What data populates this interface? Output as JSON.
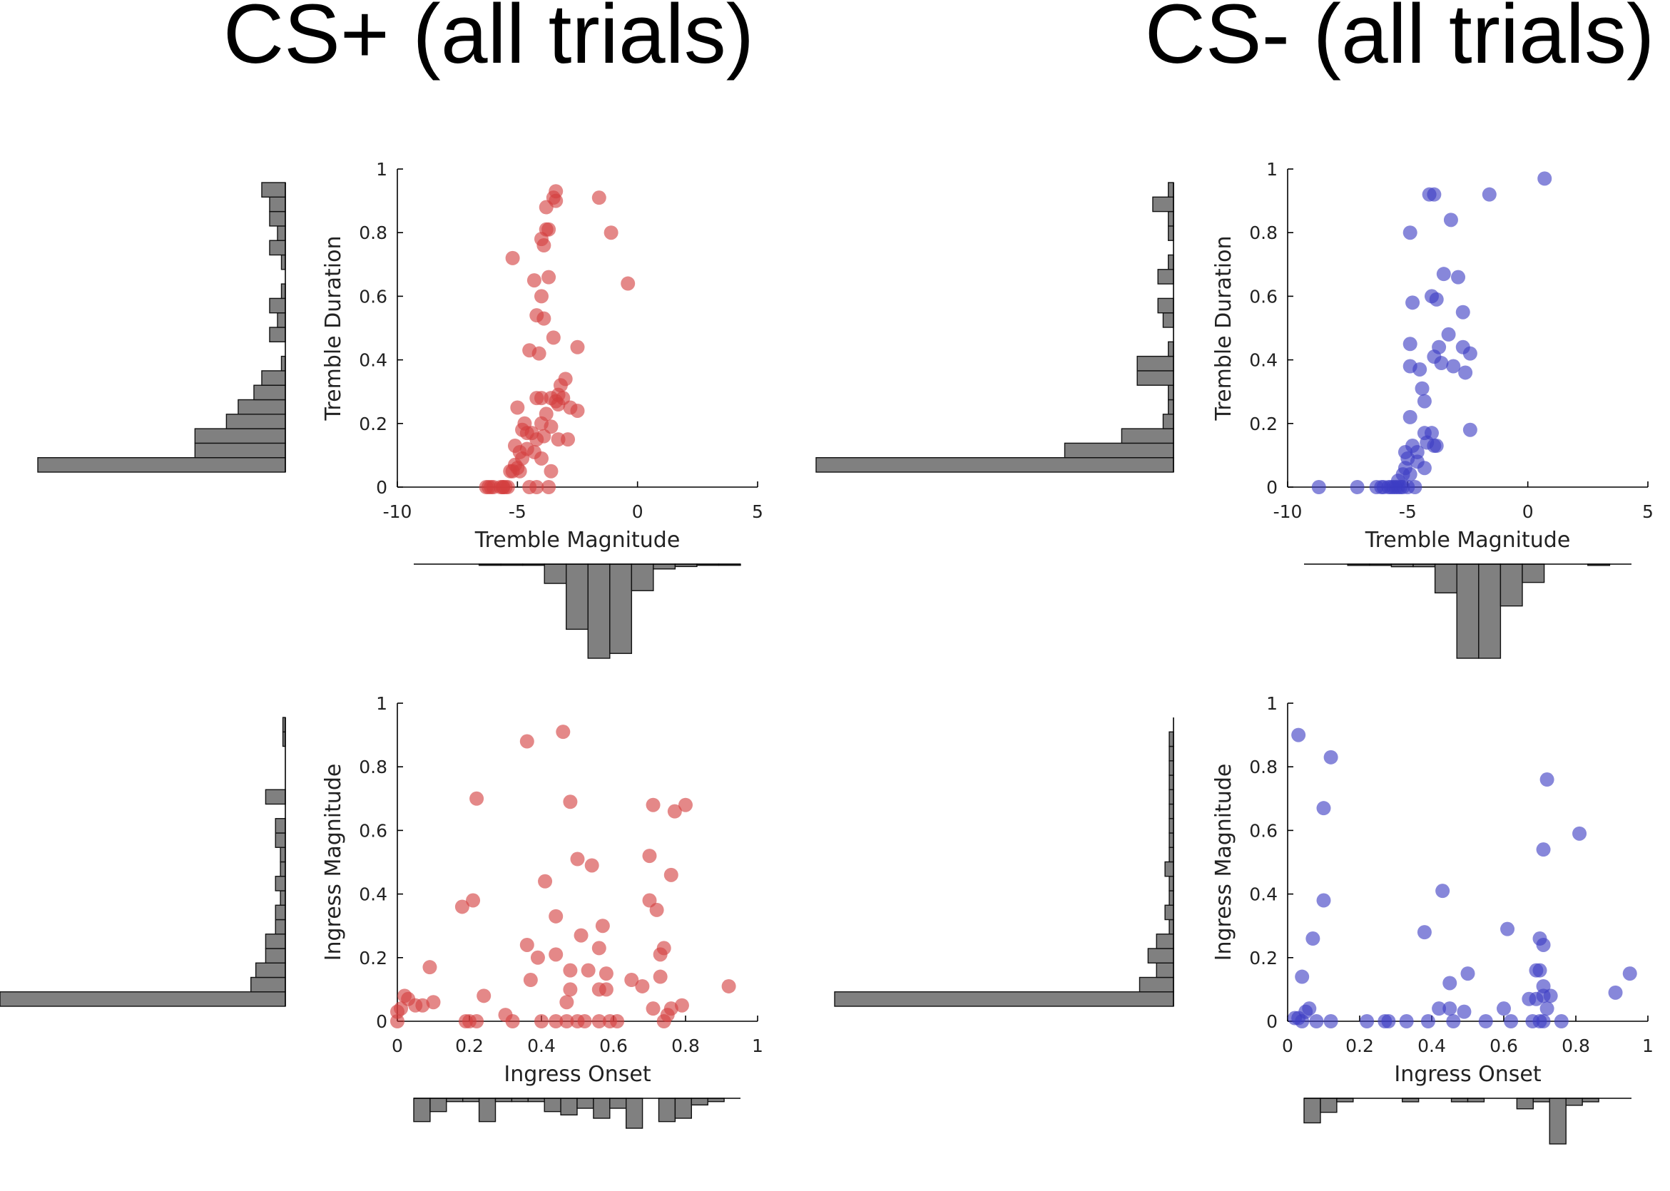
{
  "titles": {
    "left": "CS+ (all trials)",
    "right": "CS- (all trials)"
  },
  "chart_data": [
    {
      "id": "csplus-tremble",
      "type": "scatter",
      "xlabel": "Tremble Magnitude",
      "ylabel": "Tremble Duration",
      "xlim": [
        -10,
        5
      ],
      "ylim": [
        0,
        1
      ],
      "xticks": [
        -10,
        -5,
        0,
        5
      ],
      "yticks": [
        0,
        0.2,
        0.4,
        0.6,
        0.8,
        1
      ],
      "color": "#d43f3f",
      "points": [
        [
          -3.4,
          0.93
        ],
        [
          -3.5,
          0.91
        ],
        [
          -3.4,
          0.9
        ],
        [
          -1.6,
          0.91
        ],
        [
          -1.1,
          0.8
        ],
        [
          -3.8,
          0.88
        ],
        [
          -3.8,
          0.81
        ],
        [
          -3.7,
          0.81
        ],
        [
          -4.0,
          0.78
        ],
        [
          -3.9,
          0.76
        ],
        [
          -5.2,
          0.72
        ],
        [
          -0.4,
          0.64
        ],
        [
          -4.3,
          0.65
        ],
        [
          -3.7,
          0.66
        ],
        [
          -4.0,
          0.6
        ],
        [
          -4.2,
          0.54
        ],
        [
          -3.9,
          0.53
        ],
        [
          -3.5,
          0.47
        ],
        [
          -4.5,
          0.43
        ],
        [
          -4.1,
          0.42
        ],
        [
          -2.5,
          0.44
        ],
        [
          -3.0,
          0.34
        ],
        [
          -3.2,
          0.32
        ],
        [
          -3.3,
          0.29
        ],
        [
          -3.4,
          0.27
        ],
        [
          -3.1,
          0.28
        ],
        [
          -4.2,
          0.28
        ],
        [
          -4.0,
          0.28
        ],
        [
          -3.6,
          0.28
        ],
        [
          -5.0,
          0.25
        ],
        [
          -2.5,
          0.24
        ],
        [
          -2.8,
          0.25
        ],
        [
          -3.3,
          0.26
        ],
        [
          -3.8,
          0.23
        ],
        [
          -4.7,
          0.2
        ],
        [
          -4.0,
          0.2
        ],
        [
          -4.4,
          0.17
        ],
        [
          -4.6,
          0.17
        ],
        [
          -4.8,
          0.18
        ],
        [
          -3.6,
          0.19
        ],
        [
          -3.3,
          0.15
        ],
        [
          -2.9,
          0.15
        ],
        [
          -3.9,
          0.16
        ],
        [
          -4.2,
          0.15
        ],
        [
          -4.6,
          0.12
        ],
        [
          -4.3,
          0.11
        ],
        [
          -4.9,
          0.11
        ],
        [
          -5.1,
          0.13
        ],
        [
          -4.8,
          0.09
        ],
        [
          -5.1,
          0.07
        ],
        [
          -5.0,
          0.06
        ],
        [
          -5.3,
          0.05
        ],
        [
          -5.2,
          0.05
        ],
        [
          -4.9,
          0.05
        ],
        [
          -3.6,
          0.05
        ],
        [
          -4.0,
          0.09
        ],
        [
          -5.6,
          0.0
        ],
        [
          -5.5,
          0.0
        ],
        [
          -5.7,
          0.0
        ],
        [
          -6.2,
          0.0
        ],
        [
          -6.0,
          0.0
        ],
        [
          -6.3,
          0.0
        ],
        [
          -6.1,
          0.0
        ],
        [
          -4.5,
          0.0
        ],
        [
          -3.7,
          0.0
        ],
        [
          -4.2,
          0.0
        ],
        [
          -5.6,
          0.0
        ],
        [
          -5.4,
          0.0
        ]
      ]
    },
    {
      "id": "csminus-tremble",
      "type": "scatter",
      "xlabel": "Tremble Magnitude",
      "ylabel": "Tremble Duration",
      "xlim": [
        -10,
        5
      ],
      "ylim": [
        0,
        1
      ],
      "xticks": [
        -10,
        -5,
        0,
        5
      ],
      "yticks": [
        0,
        0.2,
        0.4,
        0.6,
        0.8,
        1
      ],
      "color": "#3d3dc4",
      "points": [
        [
          0.7,
          0.97
        ],
        [
          -4.1,
          0.92
        ],
        [
          -3.9,
          0.92
        ],
        [
          -1.6,
          0.92
        ],
        [
          -3.2,
          0.84
        ],
        [
          -4.9,
          0.8
        ],
        [
          -3.5,
          0.67
        ],
        [
          -2.9,
          0.66
        ],
        [
          -4.0,
          0.6
        ],
        [
          -3.8,
          0.59
        ],
        [
          -4.8,
          0.58
        ],
        [
          -2.7,
          0.55
        ],
        [
          -3.3,
          0.48
        ],
        [
          -4.9,
          0.45
        ],
        [
          -3.7,
          0.44
        ],
        [
          -3.9,
          0.41
        ],
        [
          -2.7,
          0.44
        ],
        [
          -2.4,
          0.42
        ],
        [
          -4.5,
          0.37
        ],
        [
          -3.6,
          0.39
        ],
        [
          -3.1,
          0.38
        ],
        [
          -2.6,
          0.36
        ],
        [
          -4.9,
          0.38
        ],
        [
          -4.4,
          0.31
        ],
        [
          -4.3,
          0.27
        ],
        [
          -4.9,
          0.22
        ],
        [
          -2.4,
          0.18
        ],
        [
          -4.3,
          0.17
        ],
        [
          -4.0,
          0.17
        ],
        [
          -4.2,
          0.14
        ],
        [
          -3.9,
          0.13
        ],
        [
          -3.8,
          0.13
        ],
        [
          -4.8,
          0.13
        ],
        [
          -4.6,
          0.11
        ],
        [
          -5.1,
          0.11
        ],
        [
          -5.0,
          0.09
        ],
        [
          -4.6,
          0.08
        ],
        [
          -4.3,
          0.06
        ],
        [
          -5.1,
          0.06
        ],
        [
          -5.2,
          0.04
        ],
        [
          -4.9,
          0.04
        ],
        [
          -5.4,
          0.02
        ],
        [
          -8.7,
          0.0
        ],
        [
          -7.1,
          0.0
        ],
        [
          -6.3,
          0.0
        ],
        [
          -6.0,
          0.0
        ],
        [
          -5.8,
          0.0
        ],
        [
          -5.6,
          0.0
        ],
        [
          -5.5,
          0.0
        ],
        [
          -5.3,
          0.0
        ],
        [
          -5.2,
          0.0
        ],
        [
          -5.0,
          0.0
        ],
        [
          -4.7,
          0.0
        ],
        [
          -6.1,
          0.0
        ],
        [
          -5.7,
          0.0
        ],
        [
          -5.4,
          0.0
        ]
      ]
    },
    {
      "id": "csplus-ingress",
      "type": "scatter",
      "xlabel": "Ingress Onset",
      "ylabel": "Ingress Magnitude",
      "xlim": [
        0,
        1
      ],
      "ylim": [
        0,
        1
      ],
      "xticks": [
        0,
        0.2,
        0.4,
        0.6,
        0.8,
        1
      ],
      "yticks": [
        0,
        0.2,
        0.4,
        0.6,
        0.8,
        1
      ],
      "color": "#d43f3f",
      "points": [
        [
          0.46,
          0.91
        ],
        [
          0.36,
          0.88
        ],
        [
          0.22,
          0.7
        ],
        [
          0.48,
          0.69
        ],
        [
          0.8,
          0.68
        ],
        [
          0.71,
          0.68
        ],
        [
          0.77,
          0.66
        ],
        [
          0.5,
          0.51
        ],
        [
          0.7,
          0.52
        ],
        [
          0.54,
          0.49
        ],
        [
          0.76,
          0.46
        ],
        [
          0.41,
          0.44
        ],
        [
          0.7,
          0.38
        ],
        [
          0.21,
          0.38
        ],
        [
          0.18,
          0.36
        ],
        [
          0.72,
          0.35
        ],
        [
          0.44,
          0.33
        ],
        [
          0.57,
          0.3
        ],
        [
          0.51,
          0.27
        ],
        [
          0.36,
          0.24
        ],
        [
          0.56,
          0.23
        ],
        [
          0.74,
          0.23
        ],
        [
          0.73,
          0.21
        ],
        [
          0.44,
          0.21
        ],
        [
          0.39,
          0.2
        ],
        [
          0.53,
          0.16
        ],
        [
          0.48,
          0.16
        ],
        [
          0.09,
          0.17
        ],
        [
          0.58,
          0.15
        ],
        [
          0.37,
          0.13
        ],
        [
          0.65,
          0.13
        ],
        [
          0.73,
          0.14
        ],
        [
          0.68,
          0.11
        ],
        [
          0.92,
          0.11
        ],
        [
          0.48,
          0.1
        ],
        [
          0.56,
          0.1
        ],
        [
          0.58,
          0.1
        ],
        [
          0.24,
          0.08
        ],
        [
          0.02,
          0.08
        ],
        [
          0.03,
          0.07
        ],
        [
          0.1,
          0.06
        ],
        [
          0.05,
          0.05
        ],
        [
          0.07,
          0.05
        ],
        [
          0.47,
          0.06
        ],
        [
          0.79,
          0.05
        ],
        [
          0.76,
          0.04
        ],
        [
          0.71,
          0.04
        ],
        [
          0.01,
          0.04
        ],
        [
          0.0,
          0.03
        ],
        [
          0.3,
          0.02
        ],
        [
          0.75,
          0.02
        ],
        [
          0.0,
          0.0
        ],
        [
          0.2,
          0.0
        ],
        [
          0.22,
          0.0
        ],
        [
          0.19,
          0.0
        ],
        [
          0.32,
          0.0
        ],
        [
          0.4,
          0.0
        ],
        [
          0.44,
          0.0
        ],
        [
          0.47,
          0.0
        ],
        [
          0.5,
          0.0
        ],
        [
          0.52,
          0.0
        ],
        [
          0.56,
          0.0
        ],
        [
          0.59,
          0.0
        ],
        [
          0.61,
          0.0
        ],
        [
          0.74,
          0.0
        ]
      ]
    },
    {
      "id": "csminus-ingress",
      "type": "scatter",
      "xlabel": "Ingress Onset",
      "ylabel": "Ingress Magnitude",
      "xlim": [
        0,
        1
      ],
      "ylim": [
        0,
        1
      ],
      "xticks": [
        0,
        0.2,
        0.4,
        0.6,
        0.8,
        1
      ],
      "yticks": [
        0,
        0.2,
        0.4,
        0.6,
        0.8,
        1
      ],
      "color": "#3d3dc4",
      "points": [
        [
          0.03,
          0.9
        ],
        [
          0.12,
          0.83
        ],
        [
          0.72,
          0.76
        ],
        [
          0.1,
          0.67
        ],
        [
          0.81,
          0.59
        ],
        [
          0.71,
          0.54
        ],
        [
          0.43,
          0.41
        ],
        [
          0.1,
          0.38
        ],
        [
          0.38,
          0.28
        ],
        [
          0.61,
          0.29
        ],
        [
          0.07,
          0.26
        ],
        [
          0.7,
          0.26
        ],
        [
          0.71,
          0.24
        ],
        [
          0.5,
          0.15
        ],
        [
          0.95,
          0.15
        ],
        [
          0.04,
          0.14
        ],
        [
          0.69,
          0.16
        ],
        [
          0.7,
          0.16
        ],
        [
          0.45,
          0.12
        ],
        [
          0.71,
          0.11
        ],
        [
          0.91,
          0.09
        ],
        [
          0.73,
          0.08
        ],
        [
          0.71,
          0.08
        ],
        [
          0.69,
          0.07
        ],
        [
          0.67,
          0.07
        ],
        [
          0.42,
          0.04
        ],
        [
          0.45,
          0.04
        ],
        [
          0.49,
          0.03
        ],
        [
          0.6,
          0.04
        ],
        [
          0.72,
          0.04
        ],
        [
          0.06,
          0.04
        ],
        [
          0.05,
          0.03
        ],
        [
          0.02,
          0.01
        ],
        [
          0.03,
          0.01
        ],
        [
          0.04,
          0.0
        ],
        [
          0.08,
          0.0
        ],
        [
          0.12,
          0.0
        ],
        [
          0.22,
          0.0
        ],
        [
          0.27,
          0.0
        ],
        [
          0.28,
          0.0
        ],
        [
          0.33,
          0.0
        ],
        [
          0.39,
          0.0
        ],
        [
          0.46,
          0.0
        ],
        [
          0.55,
          0.0
        ],
        [
          0.62,
          0.0
        ],
        [
          0.7,
          0.0
        ],
        [
          0.76,
          0.0
        ],
        [
          0.68,
          0.0
        ],
        [
          0.71,
          0.0
        ]
      ]
    },
    {
      "id": "csplus-tremble-duration-hist",
      "type": "bar",
      "orientation": "horizontal",
      "bins": 20,
      "values": [
        63,
        23,
        23,
        15,
        12,
        8,
        6,
        1,
        0,
        4,
        2,
        4,
        1,
        0,
        1,
        4,
        2,
        4,
        4,
        6
      ]
    },
    {
      "id": "csplus-tremble-magnitude-hist",
      "type": "bar",
      "bins": 15,
      "values": [
        0,
        0,
        0,
        0.5,
        0.5,
        0.5,
        8,
        27,
        39,
        37,
        11,
        2,
        1,
        0.5,
        0.5
      ]
    },
    {
      "id": "csminus-tremble-duration-hist",
      "type": "bar",
      "orientation": "horizontal",
      "bins": 20,
      "values": [
        69,
        21,
        10,
        2,
        1,
        1,
        7,
        7,
        1,
        0,
        2,
        3,
        0,
        3,
        1,
        0,
        1,
        1,
        4,
        1
      ]
    },
    {
      "id": "csminus-tremble-magnitude-hist",
      "type": "bar",
      "bins": 15,
      "values": [
        0,
        0,
        0.5,
        0.5,
        1,
        1,
        11,
        36,
        36,
        16,
        7,
        0,
        0,
        0.5,
        0
      ]
    },
    {
      "id": "csplus-ingress-magnitude-hist",
      "type": "bar",
      "orientation": "horizontal",
      "bins": 20,
      "values": [
        58,
        7,
        6,
        4,
        4,
        2,
        2,
        1,
        2,
        1,
        1,
        2,
        2,
        0,
        4,
        0,
        0,
        0,
        0.5,
        0.5
      ]
    },
    {
      "id": "csplus-ingress-onset-hist",
      "type": "bar",
      "bins": 20,
      "values": [
        7,
        4,
        1,
        1,
        7,
        1,
        1,
        1,
        4,
        5,
        3,
        6,
        3,
        9,
        0,
        7,
        6,
        2,
        1,
        0
      ]
    },
    {
      "id": "csminus-ingress-magnitude-hist",
      "type": "bar",
      "orientation": "horizontal",
      "bins": 20,
      "values": [
        40,
        4,
        2,
        3,
        2,
        0.5,
        1,
        0.5,
        0.5,
        1,
        0.5,
        0.5,
        0.5,
        0.5,
        0.5,
        0.5,
        0.5,
        0.5,
        0.5,
        0
      ]
    },
    {
      "id": "csminus-ingress-onset-hist",
      "type": "bar",
      "bins": 20,
      "values": [
        7,
        4,
        1,
        0,
        0,
        0,
        1,
        0,
        0,
        1,
        1,
        0,
        0,
        3,
        1,
        13,
        2,
        1,
        0,
        0
      ]
    }
  ]
}
